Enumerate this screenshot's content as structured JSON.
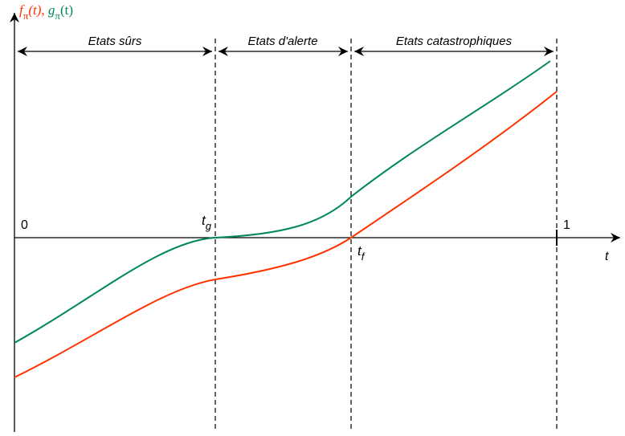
{
  "y_axis_label": {
    "f_symbol": "f",
    "f_subscript": "π",
    "f_argument": "(t)",
    "separator": ", ",
    "g_symbol": "g",
    "g_subscript": "π",
    "g_argument": "(t)"
  },
  "x_axis_label": "t",
  "origin_label": "0",
  "end_label": "1",
  "tg_label": {
    "symbol": "t",
    "subscript": "g"
  },
  "tf_label": {
    "symbol": "t",
    "subscript": "f"
  },
  "regions": {
    "safe": "Etats sûrs",
    "alert": "Etats d'alerte",
    "catastrophic": "Etats catastrophiques"
  },
  "colors": {
    "f_curve": "#ff3300",
    "g_curve": "#008855",
    "axes": "#000000"
  }
}
